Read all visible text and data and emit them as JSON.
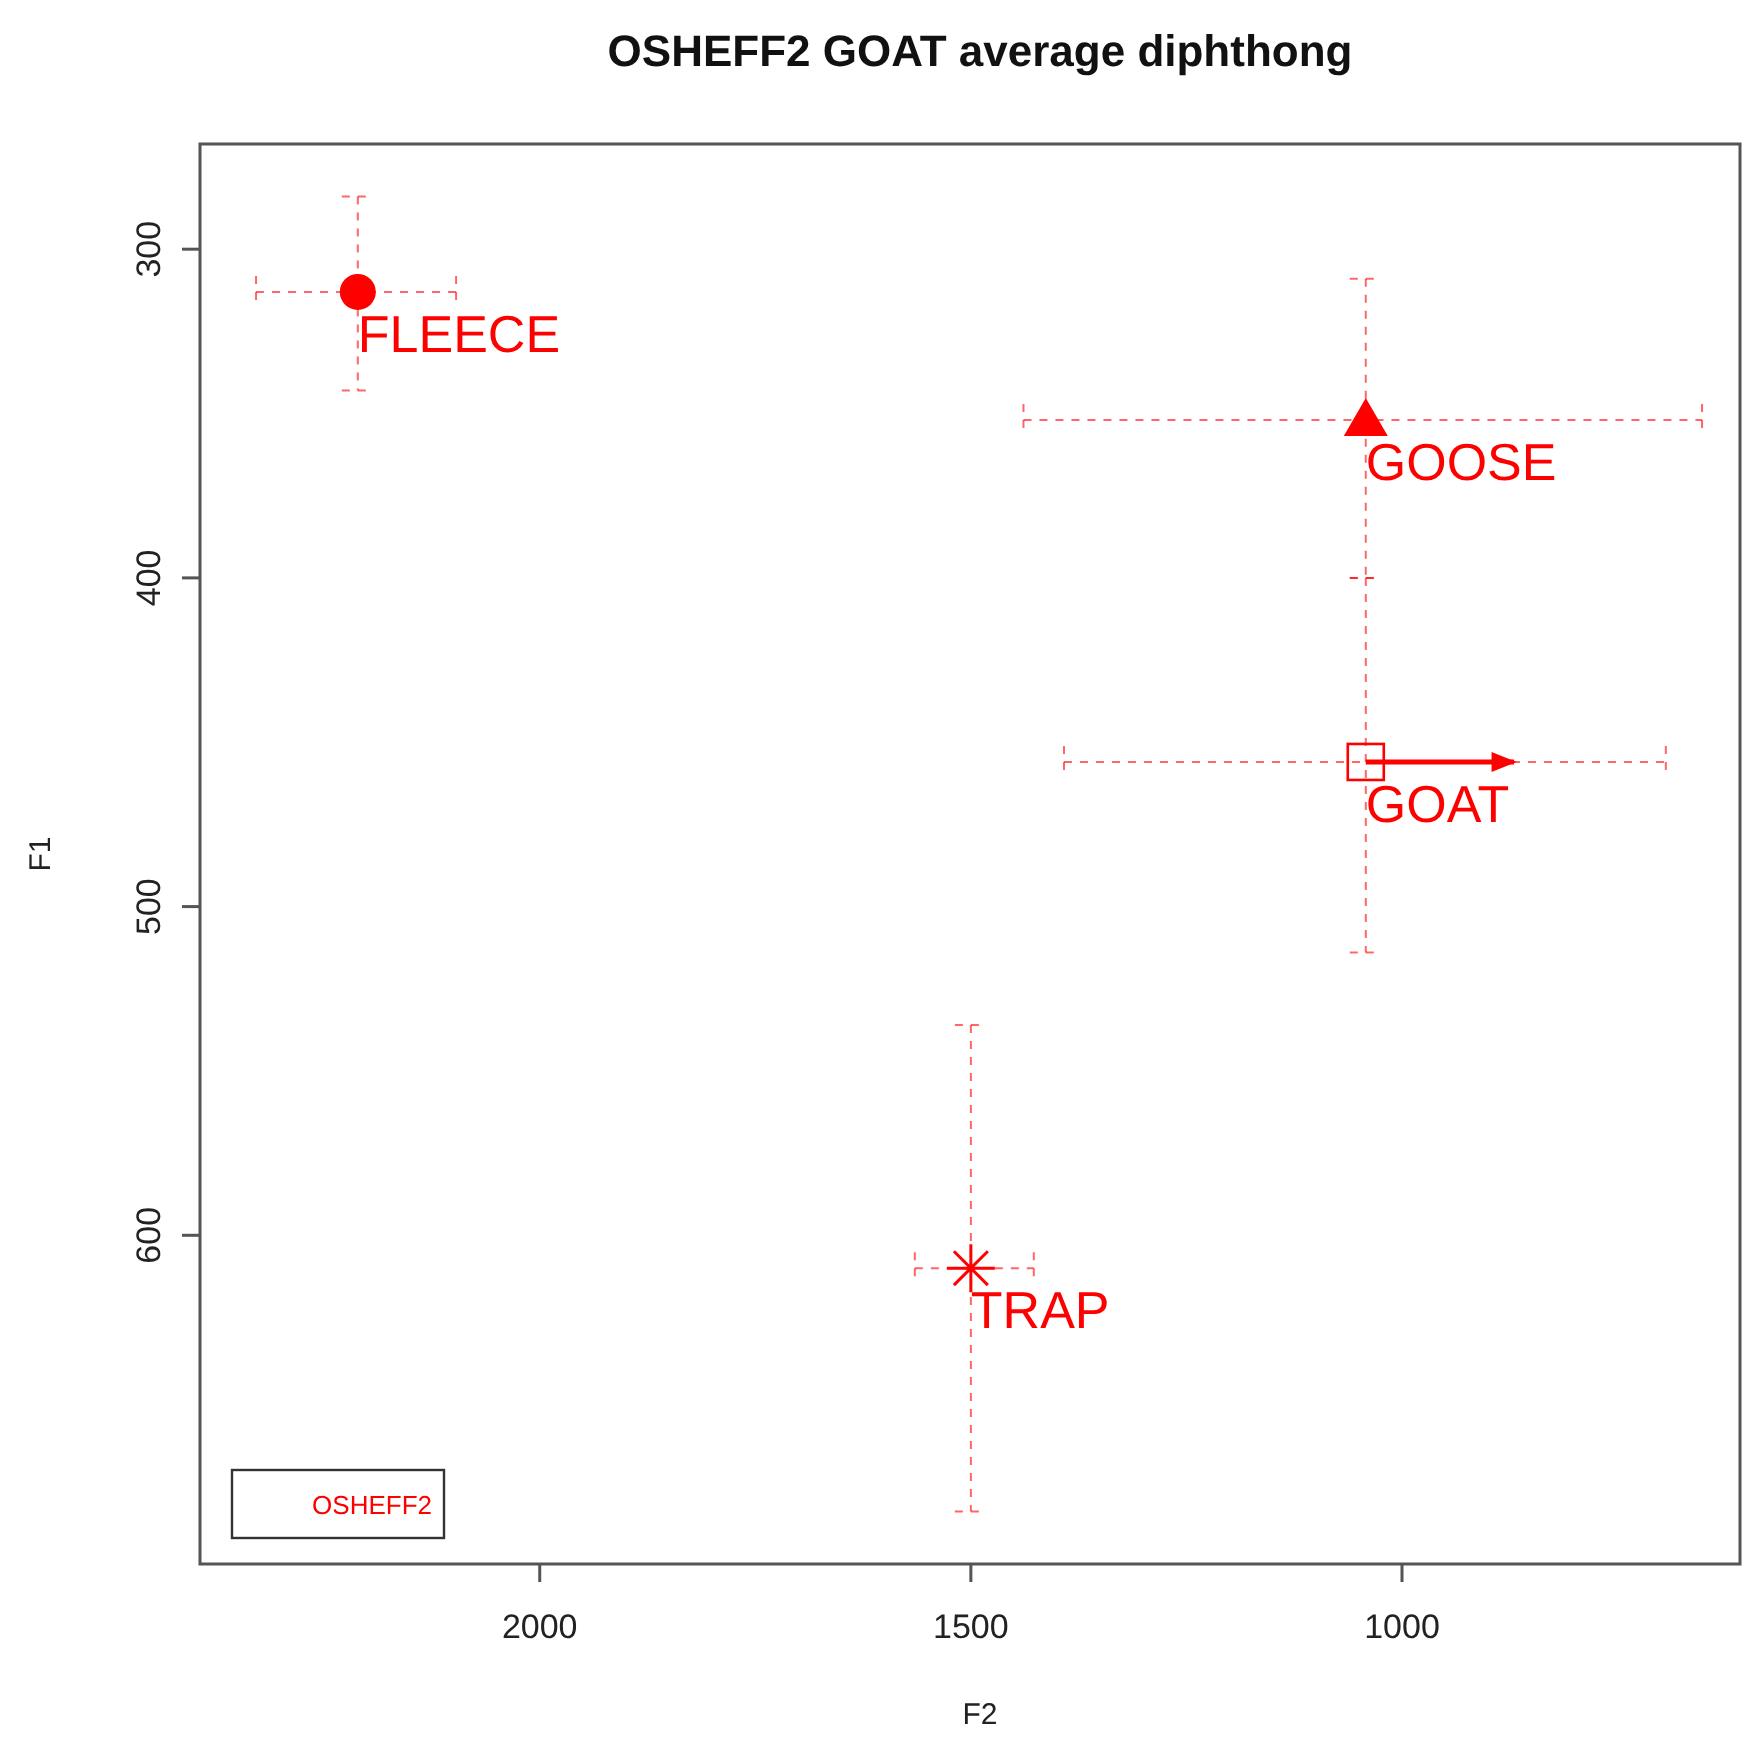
{
  "chart_data": {
    "type": "scatter",
    "title": "OSHEFF2 GOAT average diphthong",
    "xlabel": "F2",
    "ylabel": "F1",
    "xlim": [
      2394,
      608
    ],
    "ylim": [
      700,
      268
    ],
    "xticks": [
      2000,
      1500,
      1000
    ],
    "yticks": [
      300,
      400,
      500,
      600
    ],
    "grid": false,
    "series": [
      {
        "color": "#ff0000",
        "marker": "circle",
        "x": [
          2211
        ],
        "values": [
          313
        ],
        "errors": [
          [
            284,
            343
          ]
        ],
        "xerrors": [
          [
            2329,
            2097
          ]
        ]
      },
      {
        "color": "#ff0000",
        "marker": "triangle",
        "x": [
          1042
        ],
        "values": [
          352
        ],
        "errors": [
          [
            309,
            400
          ]
        ],
        "xerrors": [
          [
            1439,
            652
          ]
        ]
      },
      {
        "color": "#ff0000",
        "marker": "square",
        "x": [
          1042
        ],
        "values": [
          456
        ],
        "errors": [
          [
            400,
            514
          ]
        ],
        "xerrors": [
          [
            1392,
            694
          ]
        ]
      },
      {
        "color": "#ff0000",
        "marker": "cross",
        "x": [
          1500
        ],
        "values": [
          610
        ],
        "errors": [
          [
            536,
            684
          ]
        ],
        "xerrors": [
          [
            1565,
            1427
          ]
        ]
      },
      {
        "type": "line",
        "color": "#ff0000",
        "marker": "none",
        "x": [
          1042,
          870
        ],
        "values": [
          456,
          456
        ]
      }
    ],
    "annotations": [
      "OSHEFF2",
      {
        "text": "FLEECE",
        "x": 2211,
        "y": 313
      },
      {
        "text": "GOOSE",
        "x": 1042,
        "y": 352
      },
      {
        "text": "GOAT",
        "x": 1042,
        "y": 456
      },
      {
        "text": "TRAP",
        "x": 1500,
        "y": 610
      }
    ]
  }
}
